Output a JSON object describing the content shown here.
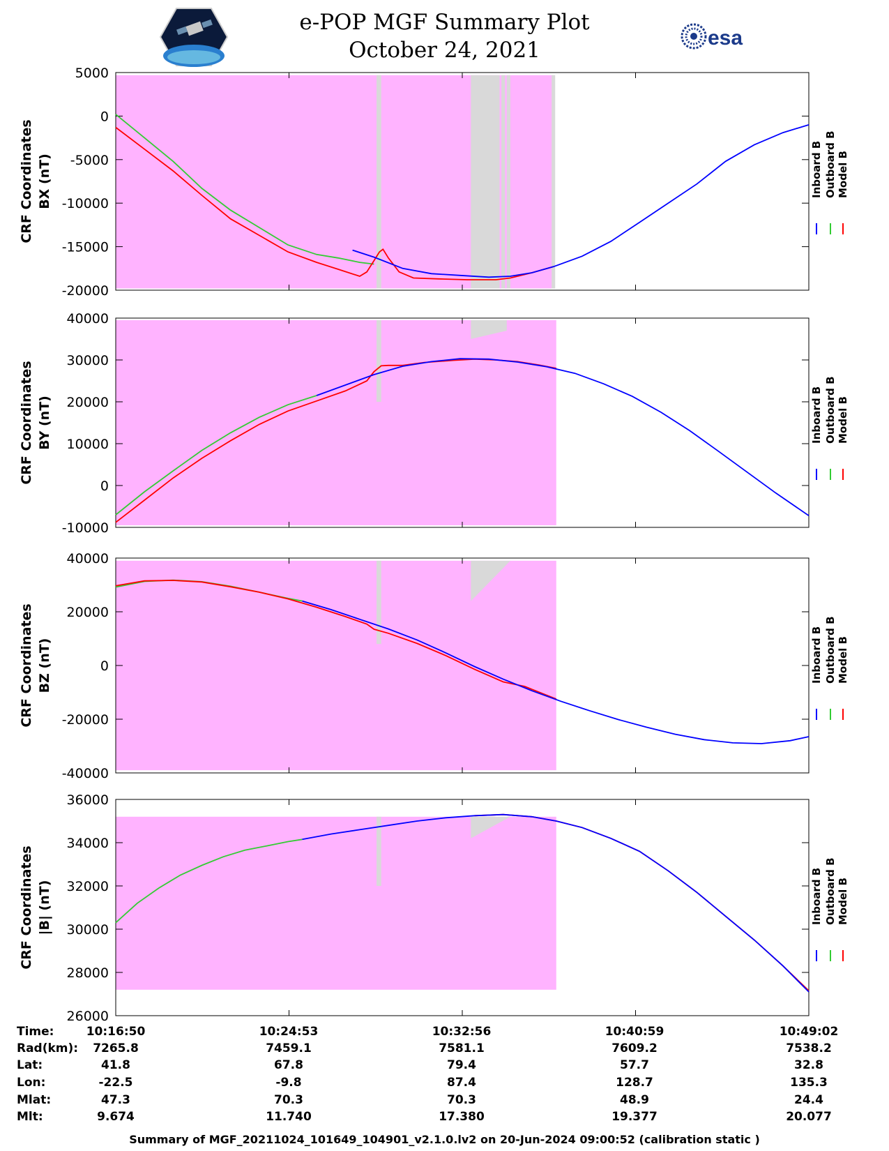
{
  "header": {
    "title": "e-POP MGF Summary Plot",
    "date": "October 24, 2021",
    "logo_left": "e-POP CASSIOPE mission logo",
    "logo_right": "esa",
    "logo_right_icon": "esa-logo-icon"
  },
  "legend": {
    "entries": [
      {
        "name": "Inboard B",
        "color": "#0000ff"
      },
      {
        "name": "Outboard B",
        "color": "#00cc00"
      },
      {
        "name": "Model B",
        "color": "#ff0000"
      }
    ]
  },
  "colors": {
    "inboard": "#0000ff",
    "outboard": "#33cc33",
    "model": "#ff0000",
    "mode_a": "#ffb3ff",
    "mode_b": "#d9d9d9"
  },
  "chart_data": [
    {
      "type": "line",
      "ylabel": "CRF Coordinates",
      "ylabel2": "BX (nT)",
      "ylim": [
        -20000,
        5000
      ],
      "yticks": [
        "5000",
        "0",
        "-5000",
        "-10000",
        "-15000",
        "-20000"
      ],
      "ytick_values": [
        5000,
        0,
        -5000,
        -10000,
        -15000,
        -20000
      ],
      "xlim": [
        0,
        1932
      ],
      "bands": {
        "mode_a": [
          [
            0,
            1220
          ]
        ],
        "mode_b": [
          [
            727,
            740
          ],
          [
            990,
            1070
          ],
          [
            1075,
            1085
          ],
          [
            1090,
            1100
          ],
          [
            1215,
            1225
          ]
        ],
        "ymin": -19800,
        "ymax": 4700
      },
      "series": [
        {
          "name": "Outboard B",
          "x": [
            0,
            80,
            160,
            240,
            320,
            400,
            480,
            560,
            620,
            680,
            720
          ],
          "y": [
            200,
            -2500,
            -5200,
            -8300,
            -10800,
            -12800,
            -14800,
            -15900,
            -16300,
            -16800,
            -17000
          ]
        },
        {
          "name": "Model B",
          "x": [
            0,
            80,
            160,
            240,
            320,
            400,
            480,
            560,
            620,
            680,
            700,
            720,
            735,
            745,
            760,
            790,
            830,
            900,
            980,
            1060,
            1100,
            1160,
            1220
          ],
          "y": [
            -1300,
            -3800,
            -6300,
            -9100,
            -11800,
            -13700,
            -15600,
            -16800,
            -17600,
            -18400,
            -17900,
            -16600,
            -15600,
            -15300,
            -16300,
            -17900,
            -18600,
            -18700,
            -18800,
            -18800,
            -18600,
            -18000,
            -17300
          ]
        },
        {
          "name": "Inboard B",
          "x": [
            660,
            720,
            800,
            880,
            960,
            1040,
            1100,
            1160,
            1220,
            1300,
            1380,
            1460,
            1540,
            1620,
            1700,
            1780,
            1860,
            1932
          ],
          "y": [
            -15400,
            -16200,
            -17500,
            -18100,
            -18300,
            -18500,
            -18400,
            -18000,
            -17300,
            -16100,
            -14400,
            -12200,
            -10000,
            -7800,
            -5200,
            -3300,
            -1900,
            -1000
          ]
        }
      ]
    },
    {
      "type": "line",
      "ylabel": "CRF Coordinates",
      "ylabel2": "BY (nT)",
      "ylim": [
        -10000,
        40000
      ],
      "yticks": [
        "40000",
        "30000",
        "20000",
        "10000",
        "0",
        "-10000"
      ],
      "ytick_values": [
        40000,
        30000,
        20000,
        10000,
        0,
        -10000
      ],
      "xlim": [
        0,
        1932
      ],
      "bands": {
        "mode_a": [
          [
            0,
            1228
          ]
        ],
        "mode_b": [
          [
            727,
            740
          ]
        ],
        "mode_b_top": [
          [
            990,
            1090,
            37000,
            35000
          ]
        ],
        "ymin": -9500,
        "ymax": 39500
      },
      "series": [
        {
          "name": "Outboard B",
          "x": [
            0,
            80,
            160,
            240,
            320,
            400,
            480,
            560
          ],
          "y": [
            -7000,
            -1500,
            3500,
            8400,
            12600,
            16300,
            19300,
            21500
          ]
        },
        {
          "name": "Model B",
          "x": [
            0,
            80,
            160,
            240,
            320,
            400,
            480,
            560,
            640,
            700,
            720,
            740,
            760,
            800,
            860,
            940,
            1000,
            1060,
            1120,
            1180,
            1228
          ],
          "y": [
            -8800,
            -3500,
            1800,
            6500,
            10700,
            14600,
            17800,
            20200,
            22600,
            25000,
            27200,
            28600,
            28700,
            28700,
            29400,
            29900,
            30200,
            30000,
            29600,
            28800,
            28000
          ]
        },
        {
          "name": "Inboard B",
          "x": [
            560,
            640,
            720,
            800,
            880,
            960,
            1040,
            1120,
            1200,
            1280,
            1360,
            1440,
            1520,
            1600,
            1680,
            1760,
            1840,
            1932
          ],
          "y": [
            21500,
            24000,
            26500,
            28500,
            29600,
            30300,
            30200,
            29500,
            28400,
            26800,
            24300,
            21300,
            17500,
            13100,
            8200,
            3200,
            -1800,
            -7200
          ]
        }
      ]
    },
    {
      "type": "line",
      "ylabel": "CRF Coordinates",
      "ylabel2": "BZ (nT)",
      "ylim": [
        -40000,
        40000
      ],
      "yticks": [
        "40000",
        "20000",
        "0",
        "-20000",
        "-40000"
      ],
      "ytick_values": [
        40000,
        20000,
        0,
        -20000,
        -40000
      ],
      "xlim": [
        0,
        1932
      ],
      "bands": {
        "mode_a": [
          [
            0,
            1228
          ]
        ],
        "mode_b": [
          [
            727,
            740
          ]
        ],
        "mode_b_top": [
          [
            990,
            1100,
            39000,
            24000
          ]
        ],
        "ymin": -39000,
        "ymax": 39000
      },
      "series": [
        {
          "name": "Outboard B",
          "x": [
            0,
            80,
            160,
            240,
            320,
            400,
            480,
            520
          ],
          "y": [
            29200,
            31300,
            31800,
            31200,
            29500,
            27300,
            25000,
            24000
          ]
        },
        {
          "name": "Model B",
          "x": [
            0,
            80,
            160,
            240,
            320,
            400,
            480,
            560,
            640,
            700,
            720,
            760,
            840,
            920,
            1000,
            1080,
            1140,
            1228
          ],
          "y": [
            29700,
            31500,
            31700,
            31100,
            29300,
            27300,
            24800,
            21700,
            18200,
            15400,
            13500,
            12000,
            8200,
            3700,
            -1400,
            -6100,
            -7800,
            -12500
          ]
        },
        {
          "name": "Inboard B",
          "x": [
            520,
            600,
            680,
            760,
            840,
            920,
            1000,
            1080,
            1160,
            1240,
            1320,
            1400,
            1480,
            1560,
            1640,
            1720,
            1800,
            1880,
            1932
          ],
          "y": [
            24000,
            20800,
            17200,
            13600,
            9500,
            4700,
            -400,
            -5100,
            -9400,
            -13300,
            -16800,
            -20100,
            -23000,
            -25600,
            -27600,
            -28800,
            -29100,
            -28000,
            -26500
          ]
        }
      ]
    },
    {
      "type": "line",
      "ylabel": "CRF Coordinates",
      "ylabel2": "|B| (nT)",
      "ylim": [
        26000,
        36000
      ],
      "yticks": [
        "36000",
        "34000",
        "32000",
        "30000",
        "28000",
        "26000"
      ],
      "ytick_values": [
        36000,
        34000,
        32000,
        30000,
        28000,
        26000
      ],
      "xlim": [
        0,
        1932
      ],
      "bands": {
        "mode_a": [
          [
            0,
            1228
          ]
        ],
        "mode_b": [
          [
            727,
            740
          ]
        ],
        "mode_b_top": [
          [
            990,
            1100,
            35200,
            34200
          ]
        ],
        "ymin": 27200,
        "ymax": 35200
      },
      "series": [
        {
          "name": "Outboard B",
          "x": [
            0,
            60,
            120,
            180,
            240,
            300,
            360,
            420,
            480,
            520
          ],
          "y": [
            30300,
            31200,
            31900,
            32500,
            32950,
            33350,
            33650,
            33850,
            34050,
            34150
          ]
        },
        {
          "name": "Model B",
          "x": [
            1000,
            1080,
            1160,
            1228,
            1300,
            1380,
            1460,
            1540,
            1620,
            1700,
            1780,
            1860,
            1932
          ],
          "y": [
            35250,
            35300,
            35200,
            35000,
            34700,
            34200,
            33600,
            32700,
            31700,
            30600,
            29500,
            28300,
            27150
          ]
        },
        {
          "name": "Inboard B",
          "x": [
            520,
            600,
            680,
            760,
            840,
            920,
            1000,
            1080,
            1160,
            1228,
            1300,
            1380,
            1460,
            1540,
            1620,
            1700,
            1780,
            1860,
            1932
          ],
          "y": [
            34150,
            34400,
            34600,
            34800,
            35000,
            35150,
            35250,
            35300,
            35200,
            35000,
            34700,
            34200,
            33600,
            32700,
            31700,
            30600,
            29500,
            28300,
            27100
          ]
        }
      ]
    }
  ],
  "ephemeris": {
    "row_labels": [
      "Time:",
      "Rad(km):",
      "Lat:",
      "Lon:",
      "Mlat:",
      "Mlt:"
    ],
    "columns": [
      [
        "10:16:50",
        "7265.8",
        "41.8",
        "-22.5",
        "47.3",
        "9.674"
      ],
      [
        "10:24:53",
        "7459.1",
        "67.8",
        "-9.8",
        "70.3",
        "11.740"
      ],
      [
        "10:32:56",
        "7581.1",
        "79.4",
        "87.4",
        "70.3",
        "17.380"
      ],
      [
        "10:40:59",
        "7609.2",
        "57.7",
        "128.7",
        "48.9",
        "19.377"
      ],
      [
        "10:49:02",
        "7538.2",
        "32.8",
        "135.3",
        "24.4",
        "20.077"
      ]
    ]
  },
  "footer": "Summary of MGF_20211024_101649_104901_v2.1.0.lv2 on 20-Jun-2024 09:00:52 (calibration static )"
}
